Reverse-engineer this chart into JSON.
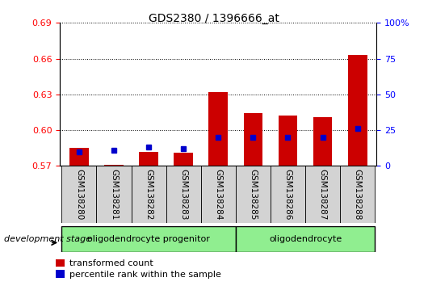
{
  "title": "GDS2380 / 1396666_at",
  "samples": [
    "GSM138280",
    "GSM138281",
    "GSM138282",
    "GSM138283",
    "GSM138284",
    "GSM138285",
    "GSM138286",
    "GSM138287",
    "GSM138288"
  ],
  "transformed_count": [
    0.585,
    0.571,
    0.582,
    0.581,
    0.632,
    0.614,
    0.612,
    0.611,
    0.663
  ],
  "percentile_rank": [
    10,
    11,
    13,
    12,
    20,
    20,
    20,
    20,
    26
  ],
  "ylim_left": [
    0.57,
    0.69
  ],
  "ylim_right": [
    0,
    100
  ],
  "yticks_left": [
    0.57,
    0.6,
    0.63,
    0.66,
    0.69
  ],
  "yticks_right": [
    0,
    25,
    50,
    75,
    100
  ],
  "group1_label": "oligodendrocyte progenitor",
  "group2_label": "oligodendrocyte",
  "group1_count": 5,
  "group2_count": 4,
  "legend_items": [
    "transformed count",
    "percentile rank within the sample"
  ],
  "bar_color": "#cc0000",
  "blue_color": "#0000cc",
  "group_bg_color": "#90EE90",
  "sample_bg_color": "#d3d3d3",
  "dev_stage_label": "development stage",
  "title_fontsize": 10,
  "tick_fontsize": 8,
  "label_fontsize": 7.5,
  "group_fontsize": 8,
  "legend_fontsize": 8
}
